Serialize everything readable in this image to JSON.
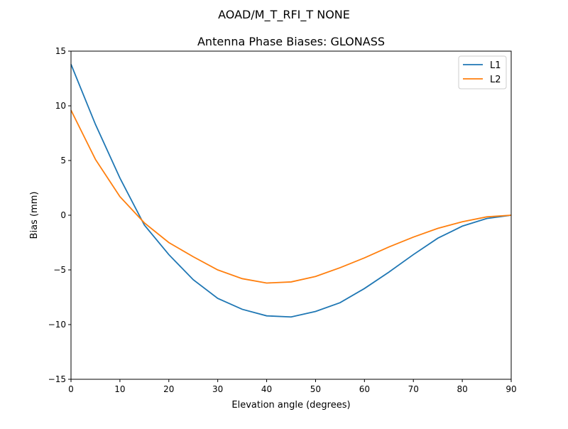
{
  "chart_data": {
    "type": "line",
    "suptitle": "AOAD/M_T_RFI_T  NONE",
    "title": "Antenna Phase Biases: GLONASS",
    "xlabel": "Elevation angle (degrees)",
    "ylabel": "Bias (mm)",
    "xlim": [
      0,
      90
    ],
    "ylim": [
      -15,
      15
    ],
    "xticks": [
      0,
      10,
      20,
      30,
      40,
      50,
      60,
      70,
      80,
      90
    ],
    "yticks": [
      -15,
      -10,
      -5,
      0,
      5,
      10,
      15
    ],
    "ytick_labels": [
      "−15",
      "−10",
      "−5",
      "0",
      "5",
      "10",
      "15"
    ],
    "grid": false,
    "legend": "top-right",
    "x": [
      0,
      5,
      10,
      15,
      20,
      25,
      30,
      35,
      40,
      45,
      50,
      55,
      60,
      65,
      70,
      75,
      80,
      85,
      90
    ],
    "series": [
      {
        "name": "L1",
        "color": "#1f77b4",
        "values": [
          13.8,
          8.3,
          3.4,
          -0.9,
          -3.6,
          -5.9,
          -7.6,
          -8.6,
          -9.2,
          -9.3,
          -8.8,
          -8.0,
          -6.7,
          -5.2,
          -3.6,
          -2.1,
          -1.0,
          -0.3,
          0.0
        ]
      },
      {
        "name": "L2",
        "color": "#ff7f0e",
        "values": [
          9.6,
          5.1,
          1.7,
          -0.7,
          -2.5,
          -3.8,
          -5.0,
          -5.8,
          -6.2,
          -6.1,
          -5.6,
          -4.8,
          -3.9,
          -2.9,
          -2.0,
          -1.2,
          -0.6,
          -0.15,
          0.0
        ]
      }
    ]
  }
}
